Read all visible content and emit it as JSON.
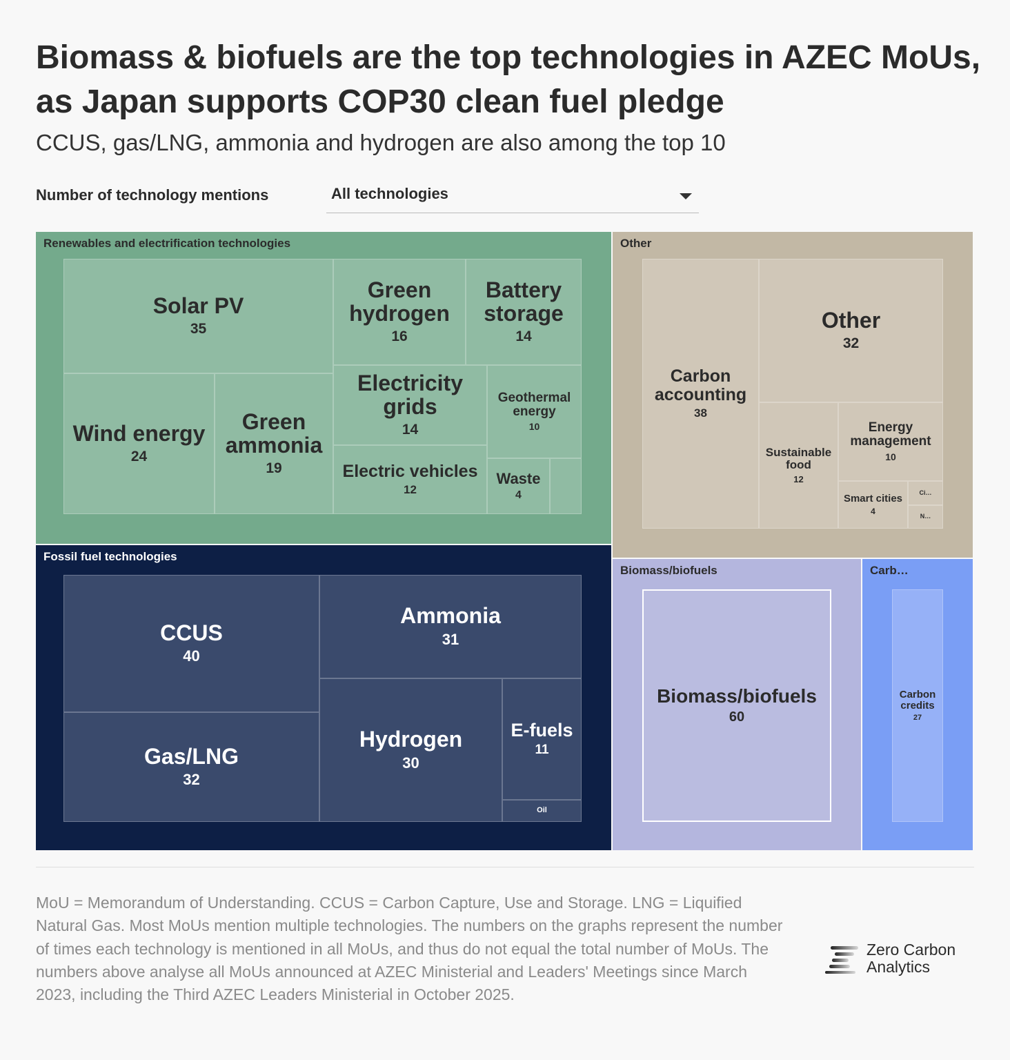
{
  "title": "Biomass & biofuels are the top technologies in AZEC MoUs, as Japan supports COP30 clean fuel pledge",
  "subtitle": "CCUS, gas/LNG, ammonia and hydrogen are also among the top 10",
  "filter": {
    "label": "Number of technology mentions",
    "selected": "All technologies"
  },
  "chart_data": {
    "type": "treemap",
    "groups": [
      {
        "label": "Renewables and electrification technologies",
        "color": "#74aa8c",
        "cell_color": "#90bba3",
        "items": [
          {
            "label": "Solar PV",
            "value": 35
          },
          {
            "label": "Green hydrogen",
            "value": 16
          },
          {
            "label": "Battery storage",
            "value": 14
          },
          {
            "label": "Wind energy",
            "value": 24
          },
          {
            "label": "Green ammonia",
            "value": 19
          },
          {
            "label": "Electricity grids",
            "value": 14
          },
          {
            "label": "Geothermal energy",
            "value": 10
          },
          {
            "label": "Electric vehicles",
            "value": 12
          },
          {
            "label": "Waste",
            "value": 4
          },
          {
            "label": "",
            "value": null
          }
        ]
      },
      {
        "label": "Fossil fuel technologies",
        "color": "#0d1f45",
        "cell_color": "#3a4a6c",
        "items": [
          {
            "label": "CCUS",
            "value": 40
          },
          {
            "label": "Gas/LNG",
            "value": 32
          },
          {
            "label": "Ammonia",
            "value": 31
          },
          {
            "label": "Hydrogen",
            "value": 30
          },
          {
            "label": "E-fuels",
            "value": 11
          },
          {
            "label": "Oil",
            "value": null
          }
        ]
      },
      {
        "label": "Other",
        "color": "#c2b8a5",
        "cell_color": "#d0c7b8",
        "items": [
          {
            "label": "Carbon accounting",
            "value": 38
          },
          {
            "label": "Other",
            "value": 32
          },
          {
            "label": "Sustainable food",
            "value": 12
          },
          {
            "label": "Energy management",
            "value": 10
          },
          {
            "label": "Smart cities",
            "value": 4
          },
          {
            "label": "Ci…",
            "value": null
          },
          {
            "label": "N…",
            "value": null
          }
        ]
      },
      {
        "label": "Biomass/biofuels",
        "color": "#b4b6de",
        "cell_color": "#babce0",
        "items": [
          {
            "label": "Biomass/biofuels",
            "value": 60
          }
        ]
      },
      {
        "label": "Carb…",
        "color": "#7a9ef5",
        "cell_color": "#96b1f7",
        "items": [
          {
            "label": "Carbon credits",
            "value": 27
          }
        ]
      }
    ]
  },
  "footnote": "MoU = Memorandum of Understanding. CCUS = Carbon Capture, Use and Storage. LNG = Liquified Natural Gas. Most MoUs mention multiple technologies. The numbers on the graphs represent the number of times each technology is mentioned in all MoUs, and thus do not equal the total number of MoUs. The numbers above analyse all MoUs announced at AZEC Ministerial and Leaders' Meetings since March 2023, including the Third AZEC Leaders Ministerial in October 2025.",
  "logo": {
    "line1": "Zero Carbon",
    "line2": "Analytics"
  }
}
